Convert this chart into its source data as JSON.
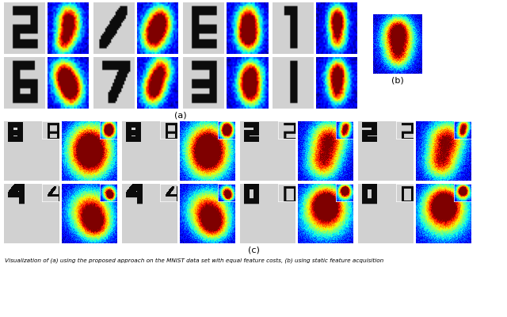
{
  "caption_line1": "Visualization of (a) using the proposed approach on the MNIST data set with equal feature costs, (b) using static feature acquisition",
  "label_a": "(a)",
  "label_b": "(b)",
  "label_c": "(c)",
  "bg_color": "#ffffff",
  "fig_width": 6.4,
  "fig_height": 4.0
}
